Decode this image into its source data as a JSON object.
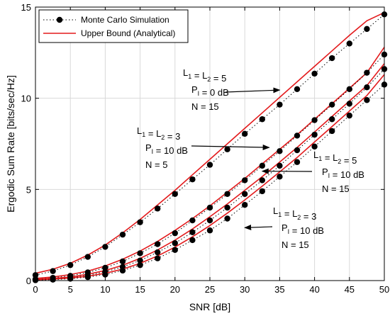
{
  "chart_data": {
    "type": "line",
    "xlabel": "SNR [dB]",
    "ylabel": "Ergodic Sum Rate [bits/sec/Hz]",
    "xlim": [
      0,
      50
    ],
    "ylim": [
      0,
      15
    ],
    "xticks": [
      0,
      5,
      10,
      15,
      20,
      25,
      30,
      35,
      40,
      45,
      50
    ],
    "yticks": [
      0,
      5,
      10,
      15
    ],
    "grid": true,
    "legend_position": "top-left",
    "legend": [
      {
        "label": "Monte Carlo Simulation",
        "style": "dotted line with filled circle markers",
        "color": "#000000"
      },
      {
        "label": "Upper Bound (Analytical)",
        "style": "solid line",
        "color": "#e31a1c"
      }
    ],
    "x": [
      0,
      2.5,
      5,
      7.5,
      10,
      12.5,
      15,
      17.5,
      20,
      22.5,
      25,
      27.5,
      30,
      32.5,
      35,
      37.5,
      40,
      42.5,
      45,
      47.5,
      50
    ],
    "series": [
      {
        "role": "upper_bound",
        "case": "L1=L2=5, PI=0 dB, N=15",
        "color": "#e31a1c",
        "values": [
          0.4,
          0.62,
          0.95,
          1.4,
          1.95,
          2.62,
          3.35,
          4.15,
          4.95,
          5.8,
          6.65,
          7.5,
          8.35,
          9.2,
          10.05,
          10.9,
          11.75,
          12.6,
          13.45,
          14.25,
          14.7
        ]
      },
      {
        "role": "simulation",
        "case": "L1=L2=5, PI=0 dB, N=15",
        "color": "#000000",
        "values": [
          0.3,
          0.52,
          0.85,
          1.3,
          1.85,
          2.52,
          3.2,
          3.95,
          4.75,
          5.55,
          6.35,
          7.2,
          8.05,
          8.85,
          9.65,
          10.5,
          11.35,
          12.2,
          13.0,
          13.8,
          14.6
        ]
      },
      {
        "role": "upper_bound",
        "case": "L1=L2=3, PI=10 dB, N=5",
        "color": "#e31a1c",
        "values": [
          0.12,
          0.2,
          0.33,
          0.52,
          0.8,
          1.17,
          1.62,
          2.15,
          2.75,
          3.4,
          4.1,
          4.85,
          5.6,
          6.4,
          7.2,
          8.0,
          8.85,
          9.7,
          10.55,
          11.4,
          12.8
        ]
      },
      {
        "role": "simulation",
        "case": "L1=L2=3, PI=10 dB, N=5",
        "color": "#000000",
        "values": [
          0.08,
          0.15,
          0.26,
          0.45,
          0.7,
          1.05,
          1.5,
          2.0,
          2.6,
          3.3,
          4.0,
          4.75,
          5.5,
          6.3,
          7.1,
          7.95,
          8.8,
          9.65,
          10.5,
          11.4,
          12.4
        ]
      },
      {
        "role": "upper_bound",
        "case": "L1=L2=5, PI=10 dB, N=15",
        "color": "#e31a1c",
        "values": [
          0.07,
          0.12,
          0.2,
          0.35,
          0.55,
          0.84,
          1.22,
          1.68,
          2.22,
          2.83,
          3.5,
          4.2,
          4.95,
          5.7,
          6.5,
          7.3,
          8.15,
          9.0,
          9.85,
          10.7,
          11.9
        ]
      },
      {
        "role": "simulation",
        "case": "L1=L2=5, PI=10 dB, N=15",
        "color": "#000000",
        "values": [
          0.05,
          0.09,
          0.16,
          0.29,
          0.48,
          0.75,
          1.1,
          1.55,
          2.05,
          2.65,
          3.3,
          4.0,
          4.75,
          5.5,
          6.3,
          7.15,
          8.0,
          8.85,
          9.7,
          10.6,
          11.6
        ]
      },
      {
        "role": "upper_bound",
        "case": "L1=L2=3, PI=10 dB, N=15",
        "color": "#e31a1c",
        "values": [
          0.04,
          0.08,
          0.14,
          0.24,
          0.4,
          0.63,
          0.95,
          1.35,
          1.84,
          2.4,
          3.02,
          3.7,
          4.42,
          5.18,
          5.96,
          6.75,
          7.6,
          8.45,
          9.3,
          10.15,
          11.3
        ]
      },
      {
        "role": "simulation",
        "case": "L1=L2=3, PI=10 dB, N=15",
        "color": "#000000",
        "values": [
          0.02,
          0.05,
          0.1,
          0.19,
          0.33,
          0.55,
          0.85,
          1.22,
          1.68,
          2.22,
          2.75,
          3.4,
          4.15,
          4.9,
          5.7,
          6.5,
          7.35,
          8.2,
          9.05,
          9.9,
          10.75
        ]
      }
    ],
    "annotations": [
      {
        "lines": [
          {
            "main": "L",
            "sub": "1",
            "mid": " = L",
            "sub2": "2",
            "tail": " = 5"
          },
          {
            "main": "P",
            "sub": "I",
            "tail": " = 0 dB"
          },
          {
            "main": "N = 15"
          }
        ],
        "arrow_to": [
          35,
          10.45
        ]
      },
      {
        "lines": [
          {
            "main": "L",
            "sub": "1",
            "mid": " = L",
            "sub2": "2",
            "tail": " = 3"
          },
          {
            "main": "P",
            "sub": "I",
            "tail": " = 10 dB"
          },
          {
            "main": "N = 5"
          }
        ],
        "arrow_to": [
          33.5,
          7.3
        ]
      },
      {
        "lines": [
          {
            "main": "L",
            "sub": "1",
            "mid": " = L",
            "sub2": "2",
            "tail": " = 5"
          },
          {
            "main": "P",
            "sub": "I",
            "tail": " = 10 dB"
          },
          {
            "main": "N = 15"
          }
        ],
        "arrow_to": [
          32.5,
          6.0
        ]
      },
      {
        "lines": [
          {
            "main": "L",
            "sub": "1",
            "mid": " = L",
            "sub2": "2",
            "tail": " = 3"
          },
          {
            "main": "P",
            "sub": "I",
            "tail": " = 10 dB"
          },
          {
            "main": "N = 15"
          }
        ],
        "arrow_to": [
          30,
          2.9
        ]
      }
    ]
  }
}
